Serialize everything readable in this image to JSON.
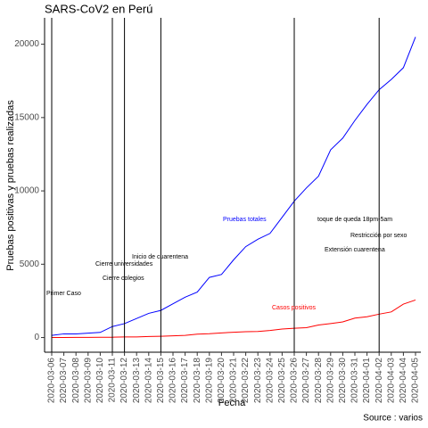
{
  "chart_data": {
    "type": "line",
    "title": "SARS-CoV2 en Perú",
    "xlabel": "Fecha",
    "ylabel": "Pruebas positivas y pruebas realizadas",
    "caption": "Source : varios",
    "categories": [
      "2020-03-06",
      "2020-03-07",
      "2020-03-08",
      "2020-03-09",
      "2020-03-10",
      "2020-03-11",
      "2020-03-12",
      "2020-03-13",
      "2020-03-14",
      "2020-03-15",
      "2020-03-16",
      "2020-03-17",
      "2020-03-18",
      "2020-03-19",
      "2020-03-20",
      "2020-03-21",
      "2020-03-22",
      "2020-03-23",
      "2020-03-24",
      "2020-03-25",
      "2020-03-26",
      "2020-03-27",
      "2020-03-28",
      "2020-03-29",
      "2020-03-30",
      "2020-03-31",
      "2020-04-01",
      "2020-04-02",
      "2020-04-03",
      "2020-04-04",
      "2020-04-05"
    ],
    "series": [
      {
        "name": "Pruebas totales",
        "color": "#0000ff",
        "values": [
          150,
          250,
          250,
          300,
          350,
          750,
          950,
          1300,
          1650,
          1850,
          2300,
          2750,
          3100,
          4100,
          4300,
          5300,
          6200,
          6700,
          7100,
          8200,
          9300,
          10200,
          11000,
          12800,
          13600,
          14800,
          15900,
          16900,
          17600,
          18400,
          20500
        ]
      },
      {
        "name": "Casos positivos",
        "color": "#ff0000",
        "values": [
          1,
          7,
          9,
          11,
          17,
          22,
          38,
          43,
          71,
          86,
          117,
          145,
          234,
          263,
          318,
          363,
          395,
          416,
          480,
          580,
          635,
          671,
          852,
          950,
          1065,
          1323,
          1414,
          1595,
          1746,
          2281,
          2561
        ]
      }
    ],
    "events": [
      {
        "date": "2020-03-06",
        "label": "Primer Caso"
      },
      {
        "date": "2020-03-11",
        "label": "Cierre universidades"
      },
      {
        "date": "2020-03-12",
        "label": "Cierre colegios"
      },
      {
        "date": "2020-03-15",
        "label": "Inicio de cuarentena"
      },
      {
        "date": "2020-03-26",
        "label": "Extensión cuarentena"
      },
      {
        "date": "2020-04-02",
        "label": "toque de queda 18pm-5am"
      }
    ],
    "annotations": [
      "Restricción por sexo"
    ],
    "ylim": [
      -1000,
      21800
    ],
    "yticks": [
      0,
      5000,
      10000,
      15000,
      20000
    ]
  }
}
